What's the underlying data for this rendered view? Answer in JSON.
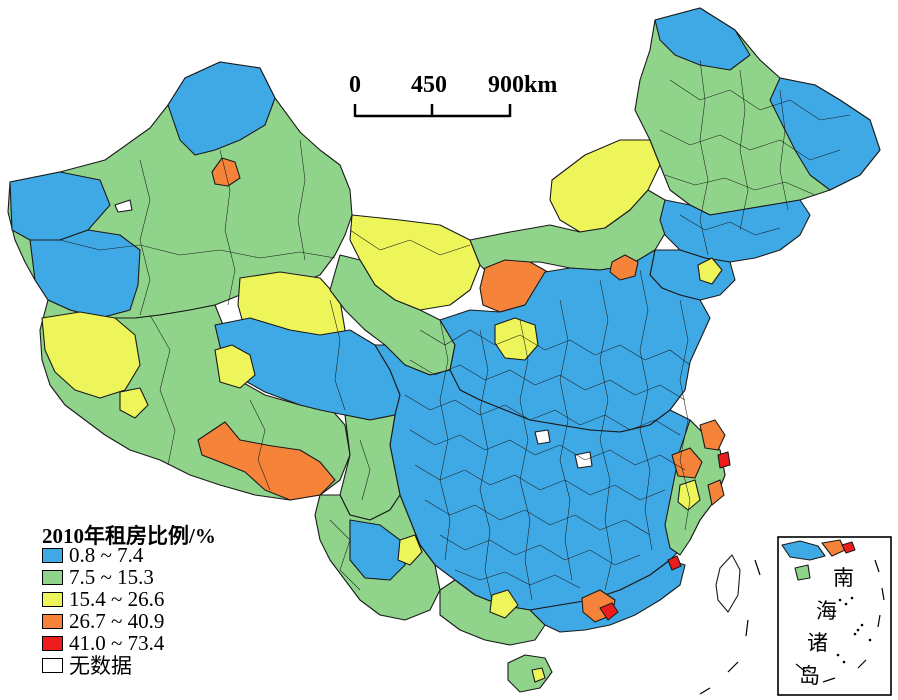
{
  "legend": {
    "title": "2010年租房比例/%",
    "items": [
      {
        "label": "0.8 ~ 7.4",
        "color": "#3fa9e6"
      },
      {
        "label": "7.5 ~ 15.3",
        "color": "#8fd48a"
      },
      {
        "label": "15.4 ~ 26.6",
        "color": "#eef55a"
      },
      {
        "label": "26.7 ~ 40.9",
        "color": "#f5843a"
      },
      {
        "label": "41.0 ~ 73.4",
        "color": "#ee1c1c"
      },
      {
        "label": "无数据",
        "color": "#ffffff"
      }
    ]
  },
  "scale_bar": {
    "labels": [
      "0",
      "450",
      "900km"
    ]
  },
  "inset": {
    "label_chars": [
      "南",
      "海",
      "诸",
      "岛"
    ]
  }
}
